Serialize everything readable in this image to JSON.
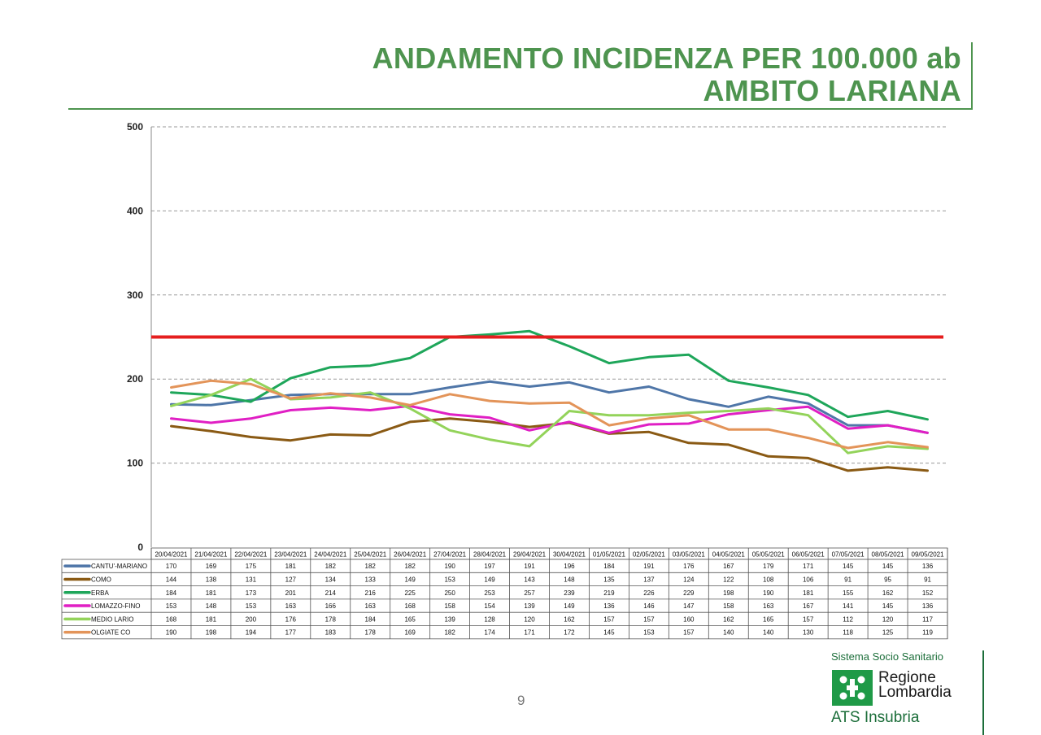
{
  "header": {
    "title_line1": "ANDAMENTO INCIDENZA PER 100.000 ab",
    "title_line2": "AMBITO LARIANA"
  },
  "footer": {
    "page_number": "9",
    "logo_top": "Sistema Socio Sanitario",
    "logo_name_line1": "Regione",
    "logo_name_line2": "Lombardia",
    "logo_bottom": "ATS Insubria"
  },
  "chart_data": {
    "type": "line",
    "title": "",
    "xlabel": "",
    "ylabel": "",
    "ylim": [
      0,
      500
    ],
    "yticks": [
      0,
      100,
      200,
      300,
      400,
      500
    ],
    "grid": true,
    "legend": "data-table",
    "categories": [
      "20/04/2021",
      "21/04/2021",
      "22/04/2021",
      "23/04/2021",
      "24/04/2021",
      "25/04/2021",
      "26/04/2021",
      "27/04/2021",
      "28/04/2021",
      "29/04/2021",
      "30/04/2021",
      "01/05/2021",
      "02/05/2021",
      "03/05/2021",
      "04/05/2021",
      "05/05/2021",
      "06/05/2021",
      "07/05/2021",
      "08/05/2021",
      "09/05/2021"
    ],
    "threshold": {
      "value": 250,
      "color": "#e51e1e"
    },
    "series": [
      {
        "name": "CANTU'-MARIANO",
        "color": "#4f76a8",
        "values": [
          170,
          169,
          175,
          181,
          182,
          182,
          182,
          190,
          197,
          191,
          196,
          184,
          191,
          176,
          167,
          179,
          171,
          145,
          145,
          136
        ]
      },
      {
        "name": "COMO",
        "color": "#8a5a14",
        "values": [
          144,
          138,
          131,
          127,
          134,
          133,
          149,
          153,
          149,
          143,
          148,
          135,
          137,
          124,
          122,
          108,
          106,
          91,
          95,
          91
        ]
      },
      {
        "name": "ERBA",
        "color": "#1ea65a",
        "values": [
          184,
          181,
          173,
          201,
          214,
          216,
          225,
          250,
          253,
          257,
          239,
          219,
          226,
          229,
          198,
          190,
          181,
          155,
          162,
          152
        ]
      },
      {
        "name": "LOMAZZO-FINO",
        "color": "#e01fc4",
        "values": [
          153,
          148,
          153,
          163,
          166,
          163,
          168,
          158,
          154,
          139,
          149,
          136,
          146,
          147,
          158,
          163,
          167,
          141,
          145,
          136
        ]
      },
      {
        "name": "MEDIO LARIO",
        "color": "#93d35a",
        "values": [
          168,
          181,
          200,
          176,
          178,
          184,
          165,
          139,
          128,
          120,
          162,
          157,
          157,
          160,
          162,
          165,
          157,
          112,
          120,
          117
        ]
      },
      {
        "name": "OLGIATE CO",
        "color": "#e39459",
        "values": [
          190,
          198,
          194,
          177,
          183,
          178,
          169,
          182,
          174,
          171,
          172,
          145,
          153,
          157,
          140,
          140,
          130,
          118,
          125,
          119
        ]
      }
    ]
  }
}
